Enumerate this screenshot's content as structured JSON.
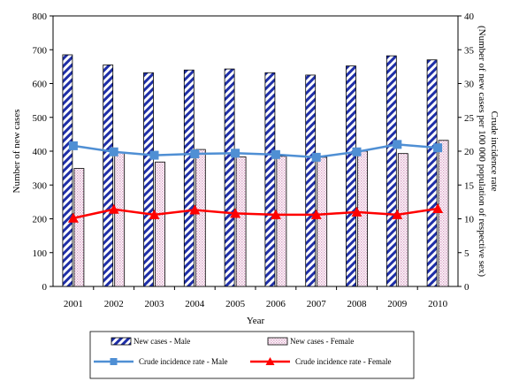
{
  "chart_data": {
    "type": "bar",
    "categories": [
      "2001",
      "2002",
      "2003",
      "2004",
      "2005",
      "2006",
      "2007",
      "2008",
      "2009",
      "2010"
    ],
    "xlabel": "Year",
    "ylabel": "Number of new cases",
    "y2label": "Crude incidence  rate (Number of new cases per 100 000 population of respective sex)",
    "ylim": [
      0,
      800
    ],
    "y2lim": [
      0,
      40
    ],
    "yticks": [
      "0",
      "100",
      "200",
      "300",
      "400",
      "500",
      "600",
      "700",
      "800"
    ],
    "y2ticks": [
      "0",
      "5",
      "10",
      "15",
      "20",
      "25",
      "30",
      "35",
      "40"
    ],
    "grid": false,
    "legend_position": "bottom",
    "series": [
      {
        "name": "New cases - Male",
        "kind": "bar",
        "axis": "left",
        "pattern": "diagonal-stripes",
        "color": "#1f2fa8",
        "values": [
          685,
          655,
          632,
          640,
          643,
          632,
          625,
          652,
          682,
          670
        ]
      },
      {
        "name": "New cases - Female",
        "kind": "bar",
        "axis": "left",
        "pattern": "pink-dots",
        "color": "#d9a3c7",
        "values": [
          349,
          397,
          368,
          405,
          383,
          385,
          382,
          400,
          393,
          432
        ]
      },
      {
        "name": "Crude incidence rate - Male",
        "kind": "line",
        "axis": "right",
        "marker": "square",
        "color": "#4f8fd4",
        "values": [
          20.8,
          19.9,
          19.4,
          19.6,
          19.7,
          19.5,
          19.1,
          19.9,
          21.0,
          20.5
        ]
      },
      {
        "name": "Crude incidence rate - Female",
        "kind": "line",
        "axis": "right",
        "marker": "triangle",
        "color": "#ff0000",
        "values": [
          10.1,
          11.4,
          10.6,
          11.3,
          10.8,
          10.6,
          10.6,
          11.0,
          10.6,
          11.5
        ]
      }
    ]
  }
}
